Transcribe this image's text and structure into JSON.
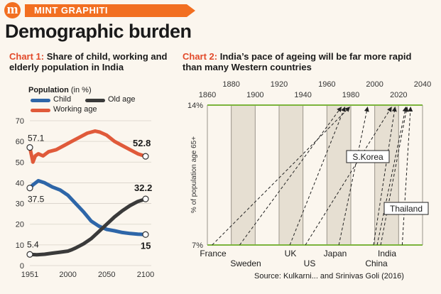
{
  "banner": {
    "logo_letter": "m",
    "label": "MINT GRAPHITI"
  },
  "headline": "Demographic burden",
  "chart1": {
    "label": "Chart 1:",
    "text": "Share of child, working and elderly population in India"
  },
  "chart2": {
    "label": "Chart 2:",
    "text": "India’s pace of ageing will be far more rapid than many Western countries"
  },
  "legend": {
    "title": "Population",
    "unit": "(in %)",
    "child": "Child",
    "old": "Old age",
    "working": "Working age"
  },
  "source": "Source: Kulkarni... and Srinivas Goli (2016)",
  "colors": {
    "child": "#2e66a8",
    "old": "#3a3a3a",
    "working": "#e05a3a",
    "accent": "#f26f21",
    "green": "#7cb43c"
  },
  "chart_data": [
    {
      "type": "line",
      "title": "Share of child, working and elderly population in India",
      "ylabel": "",
      "xlabel": "",
      "xlim": [
        1951,
        2100
      ],
      "ylim": [
        0,
        70
      ],
      "x_ticks": [
        "1951",
        "2000",
        "2050",
        "2100"
      ],
      "y_ticks": [
        "0",
        "10",
        "20",
        "30",
        "40",
        "50",
        "60",
        "70"
      ],
      "series": [
        {
          "name": "Working age",
          "color": "#e05a3a",
          "x": [
            1951,
            1955,
            1958,
            1962,
            1968,
            1975,
            1985,
            1995,
            2005,
            2015,
            2025,
            2035,
            2041,
            2050,
            2060,
            2070,
            2080,
            2090,
            2100
          ],
          "y": [
            57.1,
            50,
            53,
            54,
            53,
            55,
            56,
            58,
            60,
            62,
            64,
            65,
            64.5,
            63,
            60,
            58,
            56,
            54,
            52.8
          ]
        },
        {
          "name": "Child",
          "color": "#2e66a8",
          "x": [
            1951,
            1955,
            1962,
            1970,
            1980,
            1990,
            2000,
            2010,
            2020,
            2030,
            2040,
            2050,
            2060,
            2070,
            2080,
            2090,
            2100
          ],
          "y": [
            37.5,
            39,
            41,
            40,
            38,
            36.5,
            34,
            30,
            26,
            21.5,
            19,
            17.5,
            16.8,
            16,
            15.5,
            15.2,
            15
          ]
        },
        {
          "name": "Old age",
          "color": "#3a3a3a",
          "x": [
            1951,
            1960,
            1970,
            1980,
            1990,
            2000,
            2005,
            2010,
            2020,
            2030,
            2040,
            2050,
            2060,
            2070,
            2080,
            2090,
            2100
          ],
          "y": [
            5.4,
            5.2,
            5.5,
            6.0,
            6.5,
            7.0,
            7.7,
            8.5,
            10.5,
            13.0,
            16.5,
            20.0,
            23.5,
            26.5,
            29.0,
            31.0,
            32.2
          ]
        }
      ],
      "annotations": [
        {
          "text": "57.1",
          "x": 1951,
          "y": 57.1
        },
        {
          "text": "52.8",
          "x": 2100,
          "y": 52.8
        },
        {
          "text": "37.5",
          "x": 1951,
          "y": 37.5
        },
        {
          "text": "32.2",
          "x": 2100,
          "y": 32.2
        },
        {
          "text": "5.4",
          "x": 1951,
          "y": 5.4
        },
        {
          "text": "15",
          "x": 2100,
          "y": 15
        }
      ]
    },
    {
      "type": "line",
      "title": "India’s pace of ageing will be far more rapid than many Western countries",
      "ylabel": "% of population age 65+",
      "xlim": [
        1860,
        2040
      ],
      "y_levels": [
        "7%",
        "14%"
      ],
      "x_ticks": [
        "1860",
        "1880",
        "1900",
        "1920",
        "1940",
        "1960",
        "1980",
        "2000",
        "2020",
        "2040"
      ],
      "series": [
        {
          "name": "France",
          "x": [
            1864,
            1979
          ]
        },
        {
          "name": "Sweden",
          "x": [
            1887,
            1972
          ]
        },
        {
          "name": "UK",
          "x": [
            1929,
            1975
          ]
        },
        {
          "name": "US",
          "x": [
            1942,
            2014
          ]
        },
        {
          "name": "Japan",
          "x": [
            1970,
            1994
          ]
        },
        {
          "name": "S.Korea",
          "x": [
            1999,
            2017
          ]
        },
        {
          "name": "China",
          "x": [
            2002,
            2026
          ]
        },
        {
          "name": "Thailand",
          "x": [
            2005,
            2027
          ]
        },
        {
          "name": "India",
          "x": [
            2023,
            2030
          ]
        }
      ],
      "labels": {
        "France": "France",
        "Sweden": "Sweden",
        "UK": "UK",
        "US": "US",
        "Japan": "Japan",
        "China": "China",
        "India": "India",
        "S.Korea": "S.Korea",
        "Thailand": "Thailand"
      }
    }
  ]
}
